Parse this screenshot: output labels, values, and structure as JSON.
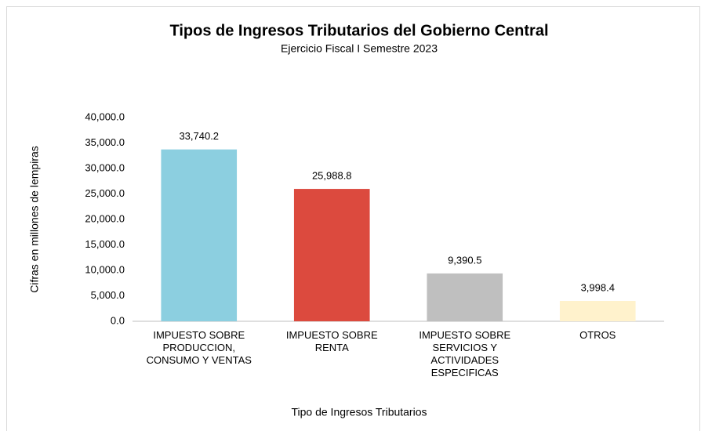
{
  "chart_data": {
    "type": "bar",
    "title": "Tipos de Ingresos Tributarios del Gobierno Central",
    "subtitle": "Ejercicio Fiscal I Semestre 2023",
    "y_label": "Cifras en millones de lempiras",
    "x_label": "Tipo de Ingresos Tributarios",
    "categories": [
      "IMPUESTO SOBRE PRODUCCION, CONSUMO Y VENTAS",
      "IMPUESTO SOBRE RENTA",
      "IMPUESTO SOBRE SERVICIOS Y ACTIVIDADES ESPECIFICAS",
      "OTROS"
    ],
    "values": [
      33740.2,
      25988.8,
      9390.5,
      3998.4
    ],
    "value_labels": [
      "33,740.2",
      "25,988.8",
      "9,390.5",
      "3,998.4"
    ],
    "colors": [
      "#8ccfe0",
      "#dc4a3e",
      "#bfbfbf",
      "#fff2cc"
    ],
    "ylim": [
      0,
      40000
    ],
    "yticks": [
      {
        "value": 0,
        "label": "0.0"
      },
      {
        "value": 5000,
        "label": "5,000.0"
      },
      {
        "value": 10000,
        "label": "10,000.0"
      },
      {
        "value": 15000,
        "label": "15,000.0"
      },
      {
        "value": 20000,
        "label": "20,000.0"
      },
      {
        "value": 25000,
        "label": "25,000.0"
      },
      {
        "value": 30000,
        "label": "30,000.0"
      },
      {
        "value": 35000,
        "label": "35,000.0"
      },
      {
        "value": 40000,
        "label": "40,000.0"
      }
    ],
    "grid": false
  }
}
